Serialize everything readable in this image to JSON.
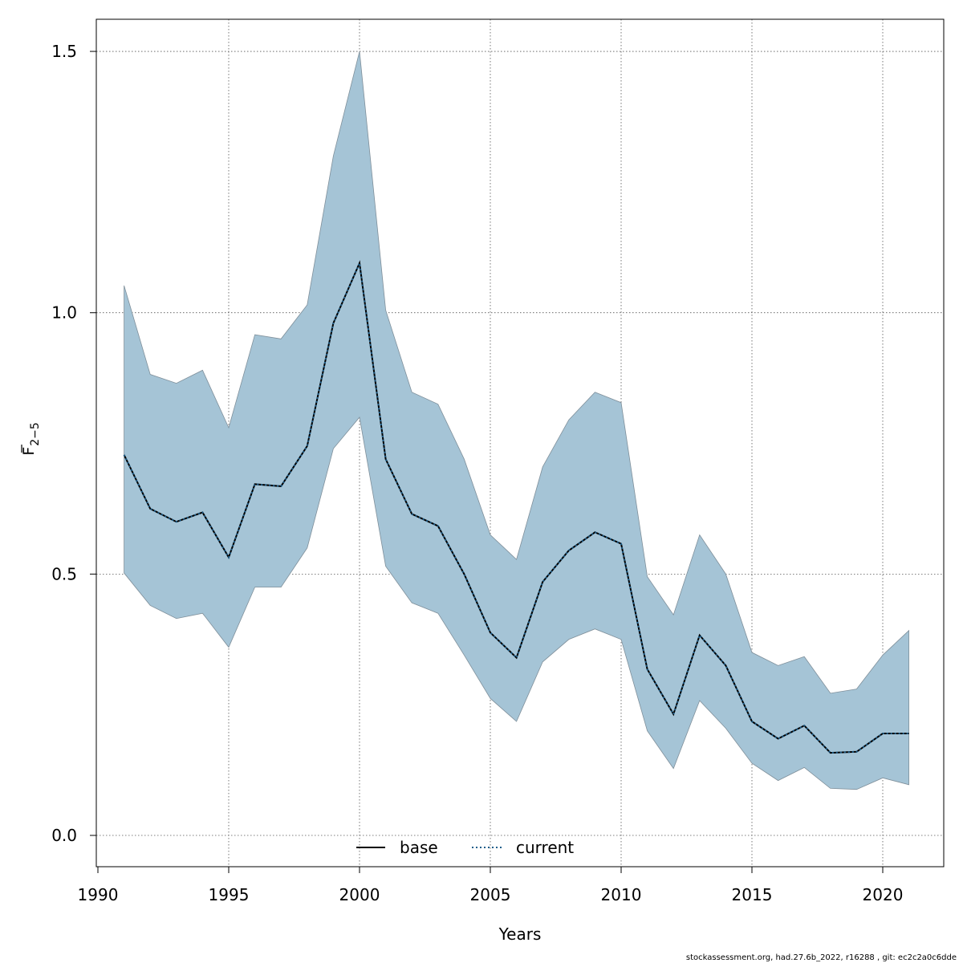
{
  "chart_data": {
    "type": "area",
    "title": "",
    "xlabel": "Years",
    "ylabel": "F",
    "ylabel_sub": "2−5",
    "xlim": [
      1990,
      2022
    ],
    "ylim": [
      -0.05,
      1.62
    ],
    "x_ticks": [
      1990,
      1995,
      2000,
      2005,
      2010,
      2015,
      2020
    ],
    "y_ticks": [
      0.0,
      0.5,
      1.0,
      1.5
    ],
    "x_tick_labels": [
      "1990",
      "1995",
      "2000",
      "2005",
      "2010",
      "2015",
      "2020"
    ],
    "y_tick_labels": [
      "0.0",
      "0.5",
      "1.0",
      "1.5"
    ],
    "grid": true,
    "legend_position": "bottom",
    "x": [
      1991,
      1992,
      1993,
      1994,
      1995,
      1996,
      1997,
      1998,
      1999,
      2000,
      2001,
      2002,
      2003,
      2004,
      2005,
      2006,
      2007,
      2008,
      2009,
      2010,
      2011,
      2012,
      2013,
      2014,
      2015,
      2016,
      2017,
      2018,
      2019,
      2020,
      2021
    ],
    "series": [
      {
        "name": "base",
        "style": "solid",
        "color": "#000000",
        "values": [
          0.728,
          0.625,
          0.6,
          0.618,
          0.532,
          0.672,
          0.668,
          0.745,
          0.98,
          1.095,
          0.72,
          0.615,
          0.592,
          0.5,
          0.388,
          0.34,
          0.485,
          0.545,
          0.58,
          0.558,
          0.318,
          0.232,
          0.383,
          0.325,
          0.218,
          0.185,
          0.21,
          0.158,
          0.16,
          0.195,
          0.195
        ]
      },
      {
        "name": "current",
        "style": "dotted",
        "color": "#1f5f8b",
        "values": [
          0.728,
          0.625,
          0.6,
          0.618,
          0.532,
          0.672,
          0.668,
          0.745,
          0.98,
          1.095,
          0.72,
          0.615,
          0.592,
          0.5,
          0.388,
          0.34,
          0.485,
          0.545,
          0.58,
          0.558,
          0.318,
          0.232,
          0.383,
          0.325,
          0.218,
          0.185,
          0.21,
          0.158,
          0.16,
          0.195,
          0.195
        ]
      }
    ],
    "band": {
      "color": "#a5c4d6",
      "edge_color": "#7f8f9a",
      "lower": [
        0.502,
        0.44,
        0.415,
        0.425,
        0.36,
        0.475,
        0.475,
        0.55,
        0.74,
        0.8,
        0.515,
        0.445,
        0.425,
        0.345,
        0.262,
        0.218,
        0.332,
        0.375,
        0.395,
        0.375,
        0.2,
        0.128,
        0.258,
        0.205,
        0.138,
        0.105,
        0.13,
        0.09,
        0.088,
        0.11,
        0.097
      ],
      "upper": [
        1.052,
        0.882,
        0.865,
        0.89,
        0.78,
        0.958,
        0.95,
        1.015,
        1.3,
        1.5,
        1.005,
        0.848,
        0.825,
        0.72,
        0.575,
        0.528,
        0.705,
        0.795,
        0.848,
        0.828,
        0.495,
        0.422,
        0.575,
        0.5,
        0.35,
        0.325,
        0.342,
        0.272,
        0.28,
        0.345,
        0.392
      ]
    }
  },
  "legend": {
    "items": [
      {
        "label": "base"
      },
      {
        "label": "current"
      }
    ]
  },
  "footer": {
    "text": "stockassessment.org, had.27.6b_2022, r16288 , git: ec2c2a0c6dde"
  },
  "colors": {
    "band": "#a5c4d6",
    "line": "#000000",
    "grid": "#555555"
  }
}
